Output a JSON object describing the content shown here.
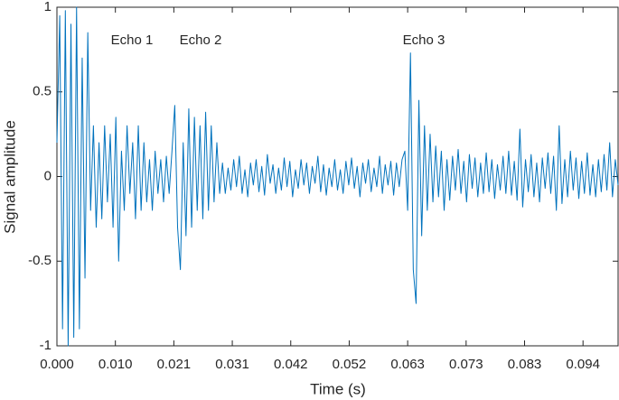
{
  "chart_data": {
    "type": "line",
    "xlabel": "Time (s)",
    "ylabel": "Signal amplitude",
    "color": "#0072bd",
    "grid": false,
    "annotations": [
      "Echo 1",
      "Echo 2",
      "Echo 3"
    ],
    "xlim": [
      0,
      0.1
    ],
    "ylim": [
      -1,
      1
    ],
    "xticks": [
      {
        "value": 0,
        "label": "0.000"
      },
      {
        "value": 0.0104167,
        "label": "0.010"
      },
      {
        "value": 0.0208333,
        "label": "0.021"
      },
      {
        "value": 0.03125,
        "label": "0.031"
      },
      {
        "value": 0.0416667,
        "label": "0.042"
      },
      {
        "value": 0.0520833,
        "label": "0.052"
      },
      {
        "value": 0.0625,
        "label": "0.063"
      },
      {
        "value": 0.0729167,
        "label": "0.073"
      },
      {
        "value": 0.0833333,
        "label": "0.083"
      },
      {
        "value": 0.09375,
        "label": "0.094"
      }
    ],
    "yticks": [
      -1,
      -0.5,
      0,
      0.5,
      1
    ],
    "x": [
      0,
      0.0005,
      0.001,
      0.0015,
      0.002,
      0.0025,
      0.003,
      0.0035,
      0.004,
      0.0045,
      0.005,
      0.0055,
      0.006,
      0.0065,
      0.007,
      0.0075,
      0.008,
      0.0085,
      0.009,
      0.0095,
      0.01,
      0.0105,
      0.011,
      0.0115,
      0.012,
      0.0125,
      0.013,
      0.0135,
      0.014,
      0.0145,
      0.015,
      0.0155,
      0.016,
      0.0165,
      0.017,
      0.0175,
      0.018,
      0.0185,
      0.019,
      0.0195,
      0.02,
      0.0205,
      0.021,
      0.0215,
      0.022,
      0.0225,
      0.023,
      0.0235,
      0.024,
      0.0245,
      0.025,
      0.0255,
      0.026,
      0.0265,
      0.027,
      0.0275,
      0.028,
      0.0285,
      0.029,
      0.0295,
      0.03,
      0.0305,
      0.031,
      0.0315,
      0.032,
      0.0325,
      0.033,
      0.0335,
      0.034,
      0.0345,
      0.035,
      0.0355,
      0.036,
      0.0365,
      0.037,
      0.0375,
      0.038,
      0.0385,
      0.039,
      0.0395,
      0.04,
      0.0405,
      0.041,
      0.0415,
      0.042,
      0.0425,
      0.043,
      0.0435,
      0.044,
      0.0445,
      0.045,
      0.0455,
      0.046,
      0.0465,
      0.047,
      0.0475,
      0.048,
      0.0485,
      0.049,
      0.0495,
      0.05,
      0.0505,
      0.051,
      0.0515,
      0.052,
      0.0525,
      0.053,
      0.0535,
      0.054,
      0.0545,
      0.055,
      0.0555,
      0.056,
      0.0565,
      0.057,
      0.0575,
      0.058,
      0.0585,
      0.059,
      0.0595,
      0.06,
      0.0605,
      0.061,
      0.0615,
      0.062,
      0.0625,
      0.063,
      0.0635,
      0.064,
      0.0645,
      0.065,
      0.0655,
      0.066,
      0.0665,
      0.067,
      0.0675,
      0.068,
      0.0685,
      0.069,
      0.0695,
      0.07,
      0.0705,
      0.071,
      0.0715,
      0.072,
      0.0725,
      0.073,
      0.0735,
      0.074,
      0.0745,
      0.075,
      0.0755,
      0.076,
      0.0765,
      0.077,
      0.0775,
      0.078,
      0.0785,
      0.079,
      0.0795,
      0.08,
      0.0805,
      0.081,
      0.0815,
      0.082,
      0.0825,
      0.083,
      0.0835,
      0.084,
      0.0845,
      0.085,
      0.0855,
      0.086,
      0.0865,
      0.087,
      0.0875,
      0.088,
      0.0885,
      0.089,
      0.0895,
      0.09,
      0.0905,
      0.091,
      0.0915,
      0.092,
      0.0925,
      0.093,
      0.0935,
      0.094,
      0.0945,
      0.095,
      0.0955,
      0.096,
      0.0965,
      0.097,
      0.0975,
      0.098,
      0.0985,
      0.099,
      0.0995,
      0.1
    ],
    "values": [
      0.2,
      0.95,
      -0.9,
      0.98,
      -1,
      0.9,
      -0.95,
      1,
      -0.9,
      0.7,
      -0.6,
      0.85,
      -0.2,
      0.3,
      -0.3,
      0.2,
      -0.25,
      0.3,
      -0.15,
      0.25,
      -0.3,
      0.35,
      -0.5,
      0.15,
      -0.2,
      0.3,
      -0.1,
      0.2,
      -0.25,
      0.3,
      -0.2,
      0.2,
      -0.15,
      0.1,
      -0.2,
      0.15,
      -0.1,
      0.1,
      -0.15,
      0.12,
      -0.1,
      0.15,
      0.42,
      -0.3,
      -0.55,
      0.2,
      -0.35,
      0.4,
      -0.3,
      0.35,
      -0.2,
      0.3,
      -0.25,
      0.38,
      -0.2,
      0.3,
      -0.15,
      0.2,
      -0.1,
      0.08,
      -0.1,
      0.05,
      -0.08,
      0.1,
      -0.06,
      0.12,
      -0.1,
      0.04,
      -0.12,
      0.08,
      -0.05,
      0.1,
      -0.09,
      0.06,
      -0.11,
      0.13,
      -0.04,
      0.07,
      -0.1,
      0.05,
      -0.08,
      0.11,
      -0.06,
      0.09,
      -0.12,
      0.04,
      -0.07,
      0.1,
      -0.05,
      0.08,
      -0.1,
      0.06,
      -0.04,
      0.12,
      -0.09,
      0.07,
      -0.11,
      0.05,
      -0.06,
      0.1,
      -0.08,
      0.04,
      -0.1,
      0.09,
      -0.05,
      0.11,
      -0.07,
      0.06,
      -0.12,
      0.08,
      -0.04,
      0.1,
      -0.09,
      0.05,
      -0.06,
      0.12,
      -0.1,
      0.07,
      -0.05,
      0.09,
      -0.11,
      0.08,
      -0.06,
      0.1,
      0.15,
      -0.2,
      0.73,
      -0.55,
      -0.75,
      0.45,
      -0.35,
      0.3,
      -0.2,
      0.25,
      -0.15,
      0.18,
      -0.12,
      0.15,
      -0.2,
      0.1,
      -0.14,
      0.12,
      -0.08,
      0.16,
      -0.1,
      0.09,
      -0.15,
      0.13,
      -0.07,
      0.11,
      -0.12,
      0.08,
      -0.1,
      0.14,
      -0.09,
      0.1,
      -0.13,
      0.07,
      -0.08,
      0.12,
      -0.1,
      0.15,
      -0.11,
      0.09,
      -0.14,
      0.28,
      -0.18,
      0.1,
      -0.09,
      0.13,
      -0.12,
      0.08,
      -0.15,
      0.11,
      -0.07,
      0.14,
      -0.1,
      0.12,
      -0.2,
      0.3,
      -0.16,
      0.1,
      -0.12,
      0.15,
      -0.08,
      0.11,
      -0.13,
      0.09,
      -0.1,
      0.14,
      -0.11,
      0.07,
      -0.12,
      0.1,
      -0.09,
      0.13,
      -0.08,
      0.2,
      -0.12,
      0.1,
      -0.05
    ]
  }
}
